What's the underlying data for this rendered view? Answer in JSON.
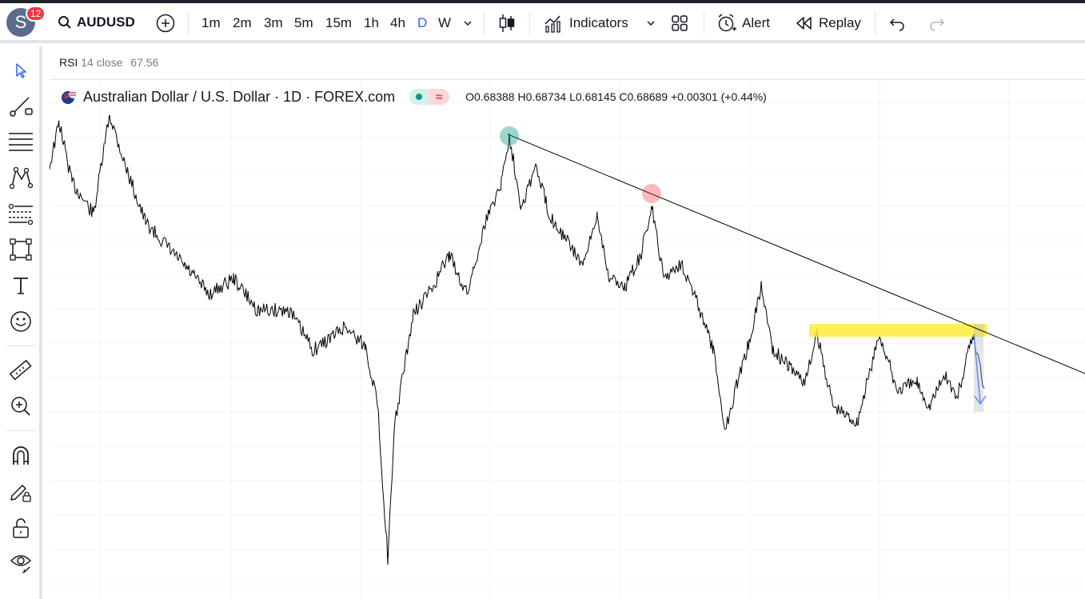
{
  "header": {
    "avatar_letter": "S",
    "notification_count": "12",
    "symbol": "AUDUSD",
    "intervals": [
      "1m",
      "2m",
      "3m",
      "5m",
      "15m",
      "1h",
      "4h",
      "D",
      "W"
    ],
    "active_interval": "D",
    "indicators_label": "Indicators",
    "alert_label": "Alert",
    "replay_label": "Replay"
  },
  "icons": {
    "search": "search-icon",
    "add": "plus-circle-icon",
    "chevron": "chevron-down-icon",
    "candles": "candlestick-icon",
    "indicators": "indicators-icon",
    "layout": "layout-grid-icon",
    "alert": "alarm-clock-icon",
    "replay": "rewind-icon",
    "undo": "undo-icon",
    "redo": "redo-icon"
  },
  "left_tools": [
    "cursor-icon",
    "trend-line-icon",
    "horizontal-lines-icon",
    "pattern-icon",
    "fib-icon",
    "rectangle-icon",
    "text-icon",
    "emoji-icon",
    "ruler-icon",
    "zoom-in-icon",
    "magnet-icon",
    "lock-drawing-icon",
    "unlock-icon",
    "eye-icon"
  ],
  "rsi": {
    "name": "RSI",
    "params": "14 close",
    "value": "67.56"
  },
  "legend": {
    "title": "Australian Dollar / U.S. Dollar · 1D · FOREX.com",
    "ohlc": "O0.68388  H0.68734  L0.68145  C0.68689  +0.00301 (+0.44%)"
  },
  "colors": {
    "accent": "#2962ff",
    "up": "#089981",
    "down": "#f23645",
    "highlight": "#ffeb3b",
    "arrow": "#5b8def"
  }
}
